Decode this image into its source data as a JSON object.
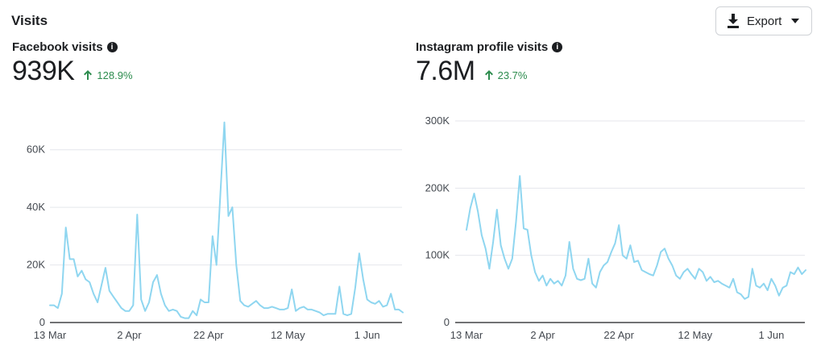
{
  "section": {
    "title": "Visits"
  },
  "toolbar": {
    "export_label": "Export"
  },
  "panels": [
    {
      "title": "Facebook visits",
      "metric": "939K",
      "change": "128.9%",
      "change_direction": "up"
    },
    {
      "title": "Instagram profile visits",
      "metric": "7.6M",
      "change": "23.7%",
      "change_direction": "up"
    }
  ],
  "colors": {
    "line": "#8fd6f0",
    "grid": "#e4e6eb",
    "axis": "#1c1e21",
    "positive": "#2d8c4e"
  },
  "chart_data": [
    {
      "type": "line",
      "title": "Facebook visits",
      "ylim": [
        0,
        70000
      ],
      "yticks": [
        0,
        20000,
        40000,
        60000
      ],
      "ytick_labels": [
        "0",
        "20K",
        "40K",
        "60K"
      ],
      "xtick_labels": [
        "13 Mar",
        "2 Apr",
        "22 Apr",
        "12 May",
        "1 Jun"
      ],
      "xtick_days": [
        0,
        20,
        40,
        60,
        80
      ],
      "x_span_days": 89,
      "grid": true,
      "series": [
        {
          "values": [
            6000,
            6000,
            5000,
            10000,
            33000,
            22000,
            22000,
            16000,
            18000,
            15000,
            14000,
            10000,
            7000,
            13000,
            19000,
            11000,
            9000,
            7000,
            5000,
            4000,
            4000,
            6000,
            37500,
            8000,
            4000,
            7000,
            14000,
            16500,
            10000,
            6000,
            4000,
            4500,
            4000,
            2000,
            1500,
            1500,
            4000,
            2500,
            8000,
            7000,
            7000,
            30000,
            20000,
            45000,
            69500,
            37000,
            40000,
            20000,
            7500,
            6000,
            5500,
            6500,
            7500,
            6000,
            5000,
            5000,
            5500,
            5000,
            4500,
            4500,
            5000,
            11500,
            4000,
            5000,
            5500,
            4500,
            4500,
            4000,
            3500,
            2500,
            3000,
            3000,
            3000,
            12500,
            3000,
            2500,
            3000,
            12000,
            24000,
            15000,
            8000,
            7000,
            6500,
            7500,
            5500,
            6000,
            10000,
            4500,
            4500,
            3500
          ]
        }
      ]
    },
    {
      "type": "line",
      "title": "Instagram profile visits",
      "ylim": [
        0,
        300000
      ],
      "yticks": [
        0,
        100000,
        200000,
        300000
      ],
      "ytick_labels": [
        "0",
        "100K",
        "200K",
        "300K"
      ],
      "xtick_labels": [
        "13 Mar",
        "2 Apr",
        "22 Apr",
        "12 May",
        "1 Jun"
      ],
      "xtick_days": [
        0,
        20,
        40,
        60,
        80
      ],
      "x_span_days": 89,
      "grid": true,
      "series": [
        {
          "values": [
            138000,
            170000,
            192000,
            165000,
            130000,
            110000,
            80000,
            120000,
            168000,
            115000,
            95000,
            80000,
            95000,
            150000,
            218000,
            140000,
            138000,
            100000,
            75000,
            62000,
            70000,
            55000,
            65000,
            58000,
            62000,
            55000,
            70000,
            120000,
            80000,
            65000,
            63000,
            65000,
            95000,
            58000,
            52000,
            75000,
            85000,
            90000,
            105000,
            118000,
            145000,
            100000,
            95000,
            115000,
            90000,
            92000,
            78000,
            75000,
            72000,
            70000,
            85000,
            105000,
            110000,
            95000,
            85000,
            70000,
            65000,
            75000,
            80000,
            72000,
            65000,
            80000,
            75000,
            62000,
            68000,
            60000,
            62000,
            58000,
            55000,
            52000,
            65000,
            45000,
            42000,
            35000,
            38000,
            80000,
            55000,
            52000,
            58000,
            48000,
            65000,
            55000,
            40000,
            52000,
            55000,
            75000,
            72000,
            82000,
            72000,
            78000
          ]
        }
      ]
    }
  ]
}
